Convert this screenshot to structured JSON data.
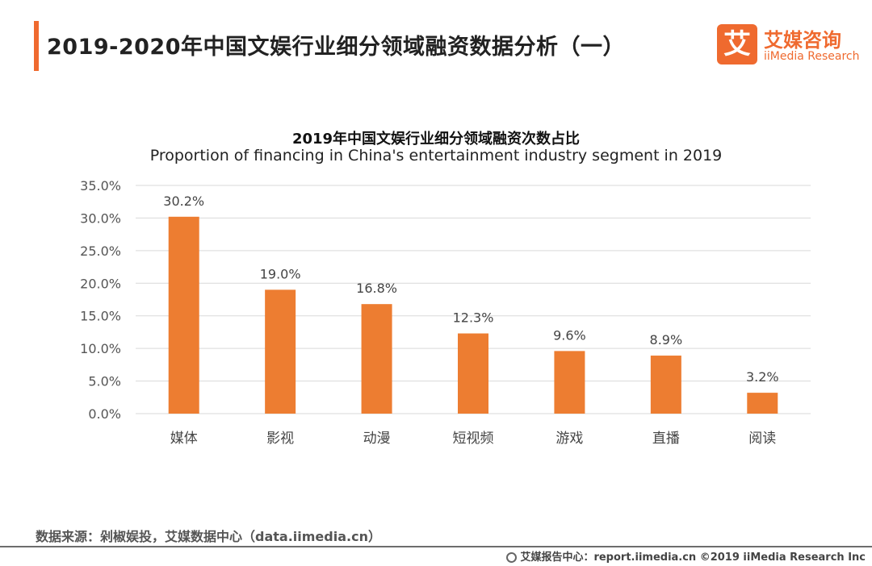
{
  "header": {
    "title": "2019-2020年中国文娱行业细分领域融资数据分析（一）",
    "logo_mark": "艾",
    "logo_cn": "艾媒咨询",
    "logo_en": "iiMedia Research"
  },
  "colors": {
    "accent": "#ef6a2f",
    "bar": "#ed7d31",
    "grid": "#d9d9d9"
  },
  "chart_data": {
    "type": "bar",
    "title": "2019年中国文娱行业细分领域融资次数占比",
    "subtitle": "Proportion of financing in China's entertainment industry segment in 2019",
    "categories": [
      "媒体",
      "影视",
      "动漫",
      "短视频",
      "游戏",
      "直播",
      "阅读"
    ],
    "values": [
      30.2,
      19.0,
      16.8,
      12.3,
      9.6,
      8.9,
      3.2
    ],
    "value_labels": [
      "30.2%",
      "19.0%",
      "16.8%",
      "12.3%",
      "9.6%",
      "8.9%",
      "3.2%"
    ],
    "ylim": [
      0,
      35
    ],
    "yticks": [
      0,
      5,
      10,
      15,
      20,
      25,
      30,
      35
    ],
    "ytick_labels": [
      "0.0%",
      "5.0%",
      "10.0%",
      "15.0%",
      "20.0%",
      "25.0%",
      "30.0%",
      "35.0%"
    ],
    "grid": true,
    "xlabel": "",
    "ylabel": ""
  },
  "source": "数据来源：剁椒娱投，艾媒数据中心（data.iimedia.cn）",
  "footer": "艾媒报告中心：report.iimedia.cn  ©2019  iiMedia Research  Inc"
}
